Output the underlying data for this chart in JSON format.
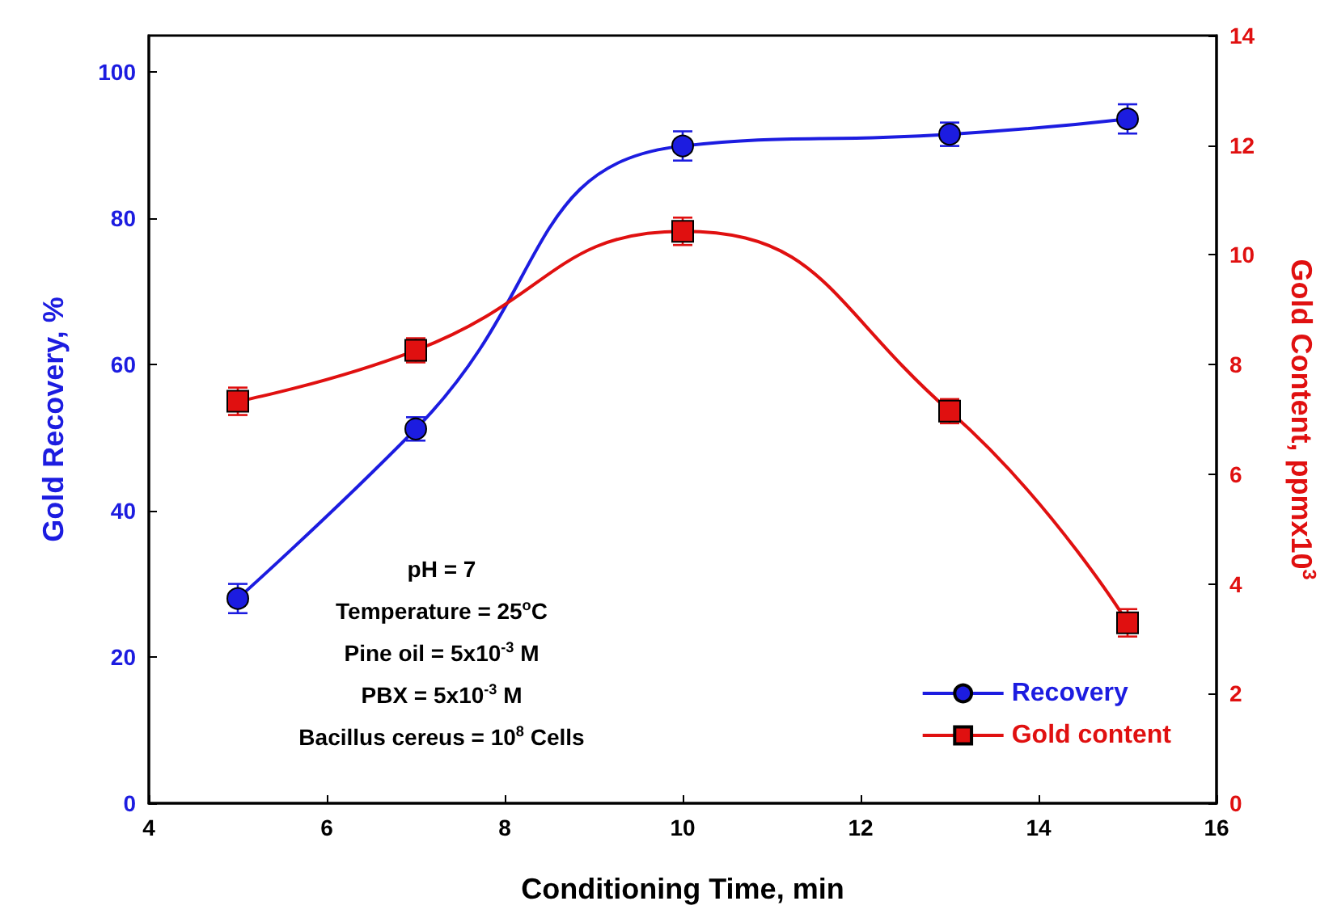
{
  "chart_data": {
    "type": "line",
    "xlabel": "Conditioning Time, min",
    "ylabel": "Gold Recovery, %",
    "y2label": "Gold Content, ppmx10$^{3}$",
    "x": [
      5,
      7,
      10,
      13,
      15
    ],
    "xlim": [
      4,
      16
    ],
    "xticks": [
      4,
      6,
      8,
      10,
      12,
      14,
      16
    ],
    "ylim": [
      0,
      105
    ],
    "yticks": [
      0,
      20,
      40,
      60,
      80,
      100
    ],
    "y2lim": [
      0,
      14
    ],
    "y2ticks": [
      0,
      2,
      4,
      6,
      8,
      10,
      12,
      14
    ],
    "series": [
      {
        "name": "Recovery",
        "color": "#1c1ce0",
        "marker": "circle",
        "values": [
          28,
          51.2,
          89.9,
          91.5,
          93.6
        ],
        "errors": [
          2,
          1.6,
          2,
          1.6,
          2
        ]
      },
      {
        "name": "Gold content",
        "color": "#e01010",
        "marker": "square",
        "axis": "y2",
        "values": [
          7.33,
          8.26,
          10.43,
          7.15,
          3.29
        ],
        "errors": [
          0.25,
          0.22,
          0.25,
          0.22,
          0.25
        ]
      }
    ],
    "annotations": [
      "pH = 7",
      "Temperature = 25$^{o}$C",
      "Pine oil = 5x10$^{-3}$ M",
      "PBX = 5x10$^{-3}$ M",
      "Bacillus cereus = 10$^{8}$ Cells"
    ],
    "legend": "bottom right",
    "grid": false
  }
}
